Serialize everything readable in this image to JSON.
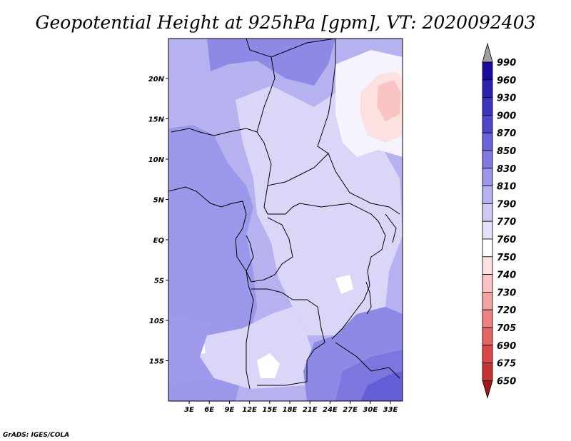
{
  "title": "Geopotential Height at 925hPa [gpm], VT: 2020092403",
  "credit": "GrADS: IGES/COLA",
  "map": {
    "lon_ticks": [
      "3E",
      "6E",
      "9E",
      "12E",
      "15E",
      "18E",
      "21E",
      "24E",
      "27E",
      "30E",
      "33E"
    ],
    "lat_ticks": [
      "20N",
      "15N",
      "10N",
      "5N",
      "EQ",
      "5S",
      "10S",
      "15S"
    ],
    "coastline_color": "#000000"
  },
  "colorbar": {
    "labels": [
      "990",
      "960",
      "930",
      "900",
      "870",
      "850",
      "830",
      "810",
      "790",
      "770",
      "760",
      "750",
      "740",
      "730",
      "720",
      "705",
      "690",
      "675",
      "650"
    ],
    "colors": [
      "#1a0aa0",
      "#2a1fb0",
      "#3c33c2",
      "#5046cc",
      "#6a62d8",
      "#8079e0",
      "#9c97ea",
      "#b6b2f0",
      "#cdcaf5",
      "#e4e2fa",
      "#ffffff",
      "#fde0e0",
      "#fbc4c4",
      "#f4a2a2",
      "#ee8282",
      "#e66464",
      "#dc4646",
      "#c83232",
      "#b22222"
    ],
    "top_arrow_color": "#a0a0a0",
    "bottom_arrow_color": "#a01818"
  }
}
